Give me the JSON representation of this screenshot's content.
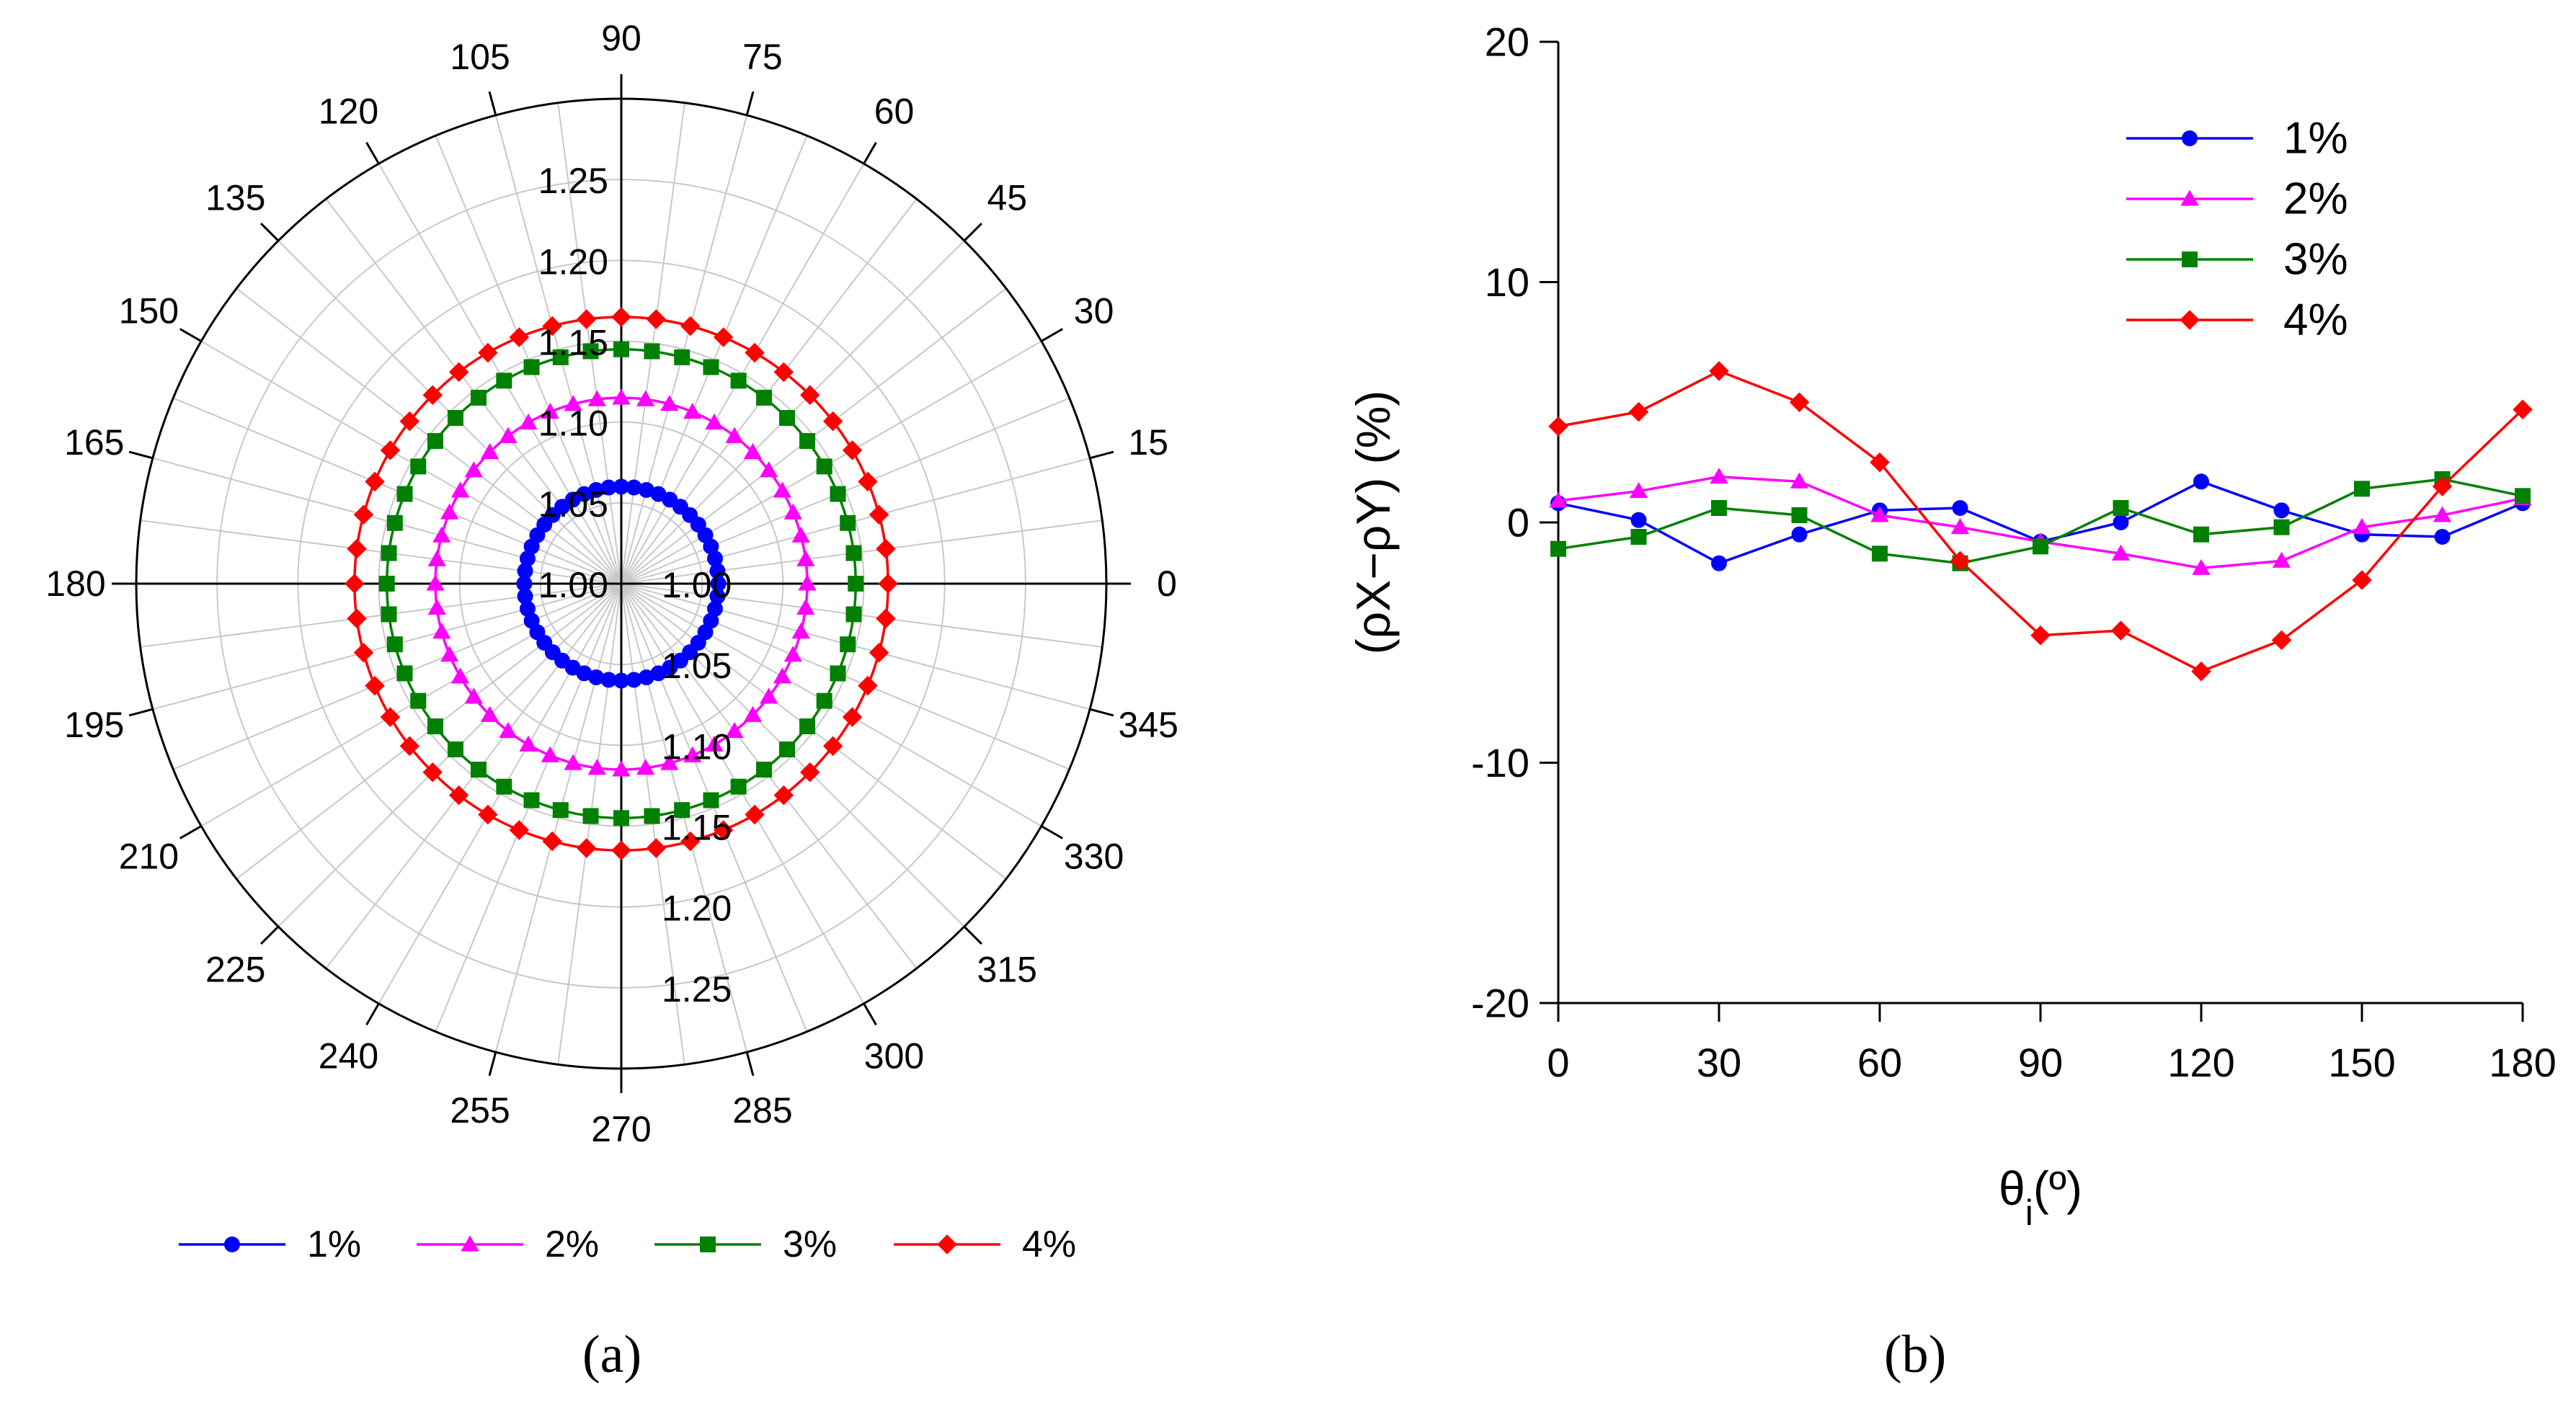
{
  "figure": {
    "panel_a_label": "(a)",
    "panel_b_label": "(b)"
  },
  "chart_data": [
    {
      "type": "polar-line",
      "panel": "a",
      "angles_deg": [
        0,
        15,
        30,
        45,
        60,
        75,
        90,
        105,
        120,
        135,
        150,
        165,
        180,
        195,
        210,
        225,
        240,
        255,
        270,
        285,
        300,
        315,
        330,
        345
      ],
      "angle_tick_labels": [
        "0",
        "15",
        "30",
        "45",
        "60",
        "75",
        "90",
        "105",
        "120",
        "135",
        "150",
        "165",
        "180",
        "195",
        "210",
        "225",
        "240",
        "255",
        "270",
        "285",
        "300",
        "315",
        "330",
        "345"
      ],
      "radial_axis": {
        "min": 1.0,
        "max": 1.3,
        "ticks": [
          1.05,
          1.1,
          1.15,
          1.2,
          1.25
        ],
        "upper_tick_labels": [
          "1.00",
          "1.05",
          "1.10",
          "1.15",
          "1.20",
          "1.25"
        ],
        "lower_tick_labels": [
          "1.00",
          "1.05",
          "1.10",
          "1.15",
          "1.20",
          "1.25"
        ]
      },
      "point_angles_deg": [
        0,
        7.5,
        15,
        22.5,
        30,
        37.5,
        45,
        52.5,
        60,
        67.5,
        75,
        82.5,
        90,
        97.5,
        105,
        112.5,
        120,
        127.5,
        135,
        142.5,
        150,
        157.5,
        165,
        172.5,
        180,
        187.5,
        195,
        202.5,
        210,
        217.5,
        225,
        232.5,
        240,
        247.5,
        255,
        262.5,
        270,
        277.5,
        285,
        292.5,
        300,
        307.5,
        315,
        322.5,
        330,
        337.5,
        345,
        352.5
      ],
      "series": [
        {
          "name": "1%",
          "color": "#0000ff",
          "marker": "circle",
          "value": 1.06
        },
        {
          "name": "2%",
          "color": "#ff00ff",
          "marker": "triangle",
          "value": 1.115
        },
        {
          "name": "3%",
          "color": "#008000",
          "marker": "square",
          "value": 1.145
        },
        {
          "name": "4%",
          "color": "#ff0000",
          "marker": "diamond",
          "value": 1.165
        }
      ],
      "legend": {
        "position": "bottom"
      }
    },
    {
      "type": "line",
      "panel": "b",
      "x": [
        0,
        15,
        30,
        45,
        60,
        75,
        90,
        105,
        120,
        135,
        150,
        165,
        180
      ],
      "xlabel_main": "θ",
      "xlabel_sub": "i",
      "xlabel_tail": "(º)",
      "ylabel": "(ρX−ρY) (%)",
      "xlim": [
        0,
        180
      ],
      "ylim": [
        -20,
        20
      ],
      "x_tick_labels": [
        "0",
        "30",
        "60",
        "90",
        "120",
        "150",
        "180"
      ],
      "x_ticks": [
        0,
        30,
        60,
        90,
        120,
        150,
        180
      ],
      "y_tick_labels": [
        "-20",
        "-10",
        "0",
        "10",
        "20"
      ],
      "y_ticks": [
        -20,
        -10,
        0,
        10,
        20
      ],
      "series": [
        {
          "name": "1%",
          "color": "#0000ff",
          "marker": "circle",
          "values": [
            0.8,
            0.1,
            -1.7,
            -0.5,
            0.5,
            0.6,
            -0.8,
            0.0,
            1.7,
            0.5,
            -0.5,
            -0.6,
            0.8
          ]
        },
        {
          "name": "2%",
          "color": "#ff00ff",
          "marker": "triangle",
          "values": [
            0.9,
            1.3,
            1.9,
            1.7,
            0.3,
            -0.2,
            -0.8,
            -1.3,
            -1.9,
            -1.6,
            -0.2,
            0.3,
            1.0
          ]
        },
        {
          "name": "3%",
          "color": "#008000",
          "marker": "square",
          "values": [
            -1.1,
            -0.6,
            0.6,
            0.3,
            -1.3,
            -1.7,
            -1.0,
            0.6,
            -0.5,
            -0.2,
            1.4,
            1.8,
            1.1
          ]
        },
        {
          "name": "4%",
          "color": "#ff0000",
          "marker": "diamond",
          "values": [
            4.0,
            4.6,
            6.3,
            5.0,
            2.5,
            -1.6,
            -4.7,
            -4.5,
            -6.2,
            -4.9,
            -2.4,
            1.5,
            4.7
          ]
        }
      ],
      "legend": {
        "position": "top-right"
      }
    }
  ]
}
